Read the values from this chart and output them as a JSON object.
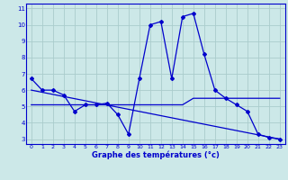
{
  "title": "Graphe des températures (°c)",
  "bg_color": "#cce8e8",
  "line_color": "#0000cc",
  "grid_color": "#aacccc",
  "xlim": [
    -0.5,
    23.5
  ],
  "ylim": [
    2.7,
    11.3
  ],
  "yticks": [
    3,
    4,
    5,
    6,
    7,
    8,
    9,
    10,
    11
  ],
  "xticks": [
    0,
    1,
    2,
    3,
    4,
    5,
    6,
    7,
    8,
    9,
    10,
    11,
    12,
    13,
    14,
    15,
    16,
    17,
    18,
    19,
    20,
    21,
    22,
    23
  ],
  "curve1_x": [
    0,
    1,
    2,
    3,
    4,
    5,
    6,
    7,
    8,
    9,
    10,
    11,
    12,
    13,
    14,
    15,
    16,
    17,
    18,
    19,
    20,
    21,
    22,
    23
  ],
  "curve1_y": [
    6.7,
    6.0,
    6.0,
    5.7,
    4.7,
    5.1,
    5.1,
    5.2,
    4.5,
    3.3,
    6.7,
    10.0,
    10.2,
    6.7,
    10.5,
    10.7,
    8.2,
    6.0,
    5.5,
    5.1,
    4.7,
    3.3,
    3.1,
    3.0
  ],
  "curve2_x": [
    0,
    23
  ],
  "curve2_y": [
    6.0,
    3.0
  ],
  "curve3_x": [
    0,
    1,
    2,
    3,
    4,
    5,
    6,
    7,
    8,
    9,
    10,
    11,
    12,
    13,
    14,
    15,
    16,
    17,
    18,
    19,
    20,
    21,
    22,
    23
  ],
  "curve3_y": [
    5.1,
    5.1,
    5.1,
    5.1,
    5.1,
    5.1,
    5.1,
    5.1,
    5.1,
    5.1,
    5.1,
    5.1,
    5.1,
    5.1,
    5.1,
    5.5,
    5.5,
    5.5,
    5.5,
    5.5,
    5.5,
    5.5,
    5.5,
    5.5
  ],
  "label_fontsize": 5.5,
  "xlabel_fontsize": 6.0
}
